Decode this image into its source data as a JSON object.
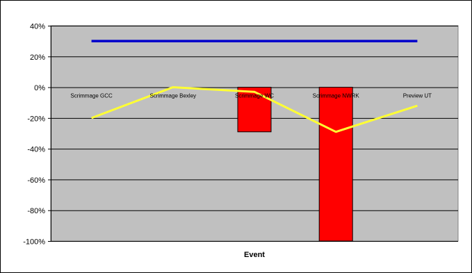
{
  "chart_data": {
    "type": "bar",
    "categories": [
      "Scrimmage GCC",
      "Scrimmage Bexley",
      "Scrimmage WC",
      "Scrimmage NWRK",
      "Preview UT"
    ],
    "series": [
      {
        "kind": "bar",
        "values": [
          0,
          0,
          -29,
          -100,
          0
        ]
      },
      {
        "kind": "line",
        "values": [
          30,
          30,
          30,
          30,
          30
        ]
      },
      {
        "kind": "line",
        "values": [
          -20,
          0,
          -3,
          -29,
          -12
        ]
      }
    ],
    "ylim": [
      -100,
      40
    ],
    "yticks": [
      -100,
      -80,
      -60,
      -40,
      -20,
      0,
      20,
      40
    ],
    "ytick_labels": [
      "-100%",
      "-80%",
      "-60%",
      "-40%",
      "-20%",
      "0%",
      "20%",
      "40%"
    ],
    "xlabel": "Event",
    "ylabel": "",
    "title": "",
    "grid": true,
    "colors": {
      "plot_background": "#c0c0c0",
      "bar": "#ff0000",
      "line_1": "#0000cc",
      "line_2": "#ffff33",
      "gridline": "#000000"
    }
  }
}
